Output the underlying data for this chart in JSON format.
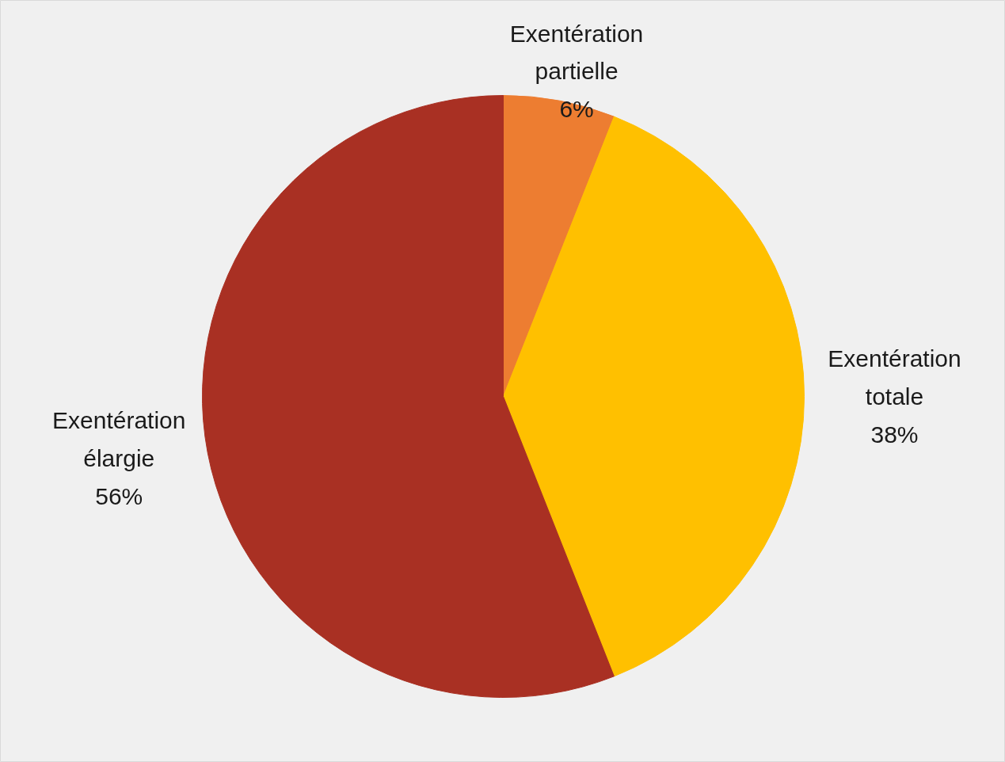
{
  "chart_data": {
    "type": "pie",
    "categories": [
      "Exentération partielle",
      "Exentération totale",
      "Exentération élargie"
    ],
    "values": [
      6,
      38,
      56
    ],
    "colors": [
      "#ed7d31",
      "#ffc000",
      "#a93023"
    ],
    "value_labels": [
      "6%",
      "38%",
      "56%"
    ]
  }
}
